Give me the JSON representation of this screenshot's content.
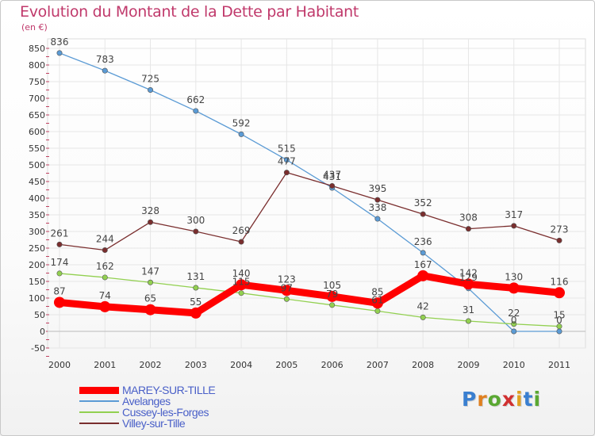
{
  "title": "Evolution du Montant de la Dette par Habitant",
  "unit": "(en €)",
  "logo_text": "Proxiti",
  "chart_data": {
    "type": "line",
    "title": "Evolution du Montant de la Dette par Habitant",
    "ylabel": "(en €)",
    "xlabel": "",
    "x": [
      "2000",
      "2001",
      "2002",
      "2003",
      "2004",
      "2005",
      "2006",
      "2007",
      "2008",
      "2009",
      "2010",
      "2011"
    ],
    "ylim": [
      -50,
      850
    ],
    "yticks": [
      -50,
      0,
      50,
      100,
      150,
      200,
      250,
      300,
      350,
      400,
      450,
      500,
      550,
      600,
      650,
      700,
      750,
      800,
      850
    ],
    "grid": true,
    "legend_position": "bottom-left",
    "series": [
      {
        "name": "MAREY-SUR-TILLE",
        "color": "#ff0000",
        "values": [
          87,
          74,
          65,
          55,
          140,
          123,
          105,
          85,
          167,
          142,
          130,
          116
        ]
      },
      {
        "name": "Avelanges",
        "color": "#5b9bd5",
        "values": [
          836,
          783,
          725,
          662,
          592,
          515,
          431,
          338,
          236,
          129,
          0,
          0
        ]
      },
      {
        "name": "Cussey-les-Forges",
        "color": "#92d050",
        "values": [
          174,
          162,
          147,
          131,
          115,
          97,
          79,
          61,
          42,
          31,
          22,
          15
        ]
      },
      {
        "name": "Villey-sur-Tille",
        "color": "#7a2e2e",
        "values": [
          261,
          244,
          328,
          300,
          269,
          477,
          437,
          395,
          352,
          308,
          317,
          273
        ]
      }
    ]
  }
}
